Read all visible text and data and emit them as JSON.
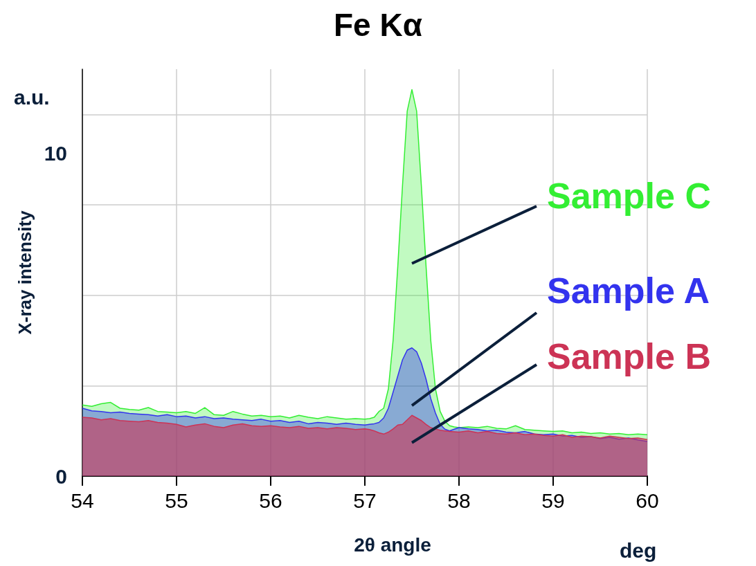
{
  "chart_data": {
    "type": "area",
    "title": "Fe Kα",
    "xlabel": "2θ angle",
    "ylabel": "X-ray intensity",
    "annotations": [
      "a.u.",
      "deg"
    ],
    "x": [
      54.0,
      54.1,
      54.2,
      54.3,
      54.4,
      54.5,
      54.6,
      54.7,
      54.8,
      54.9,
      55.0,
      55.1,
      55.2,
      55.3,
      55.4,
      55.5,
      55.6,
      55.7,
      55.8,
      55.9,
      56.0,
      56.1,
      56.2,
      56.3,
      56.4,
      56.5,
      56.6,
      56.7,
      56.8,
      56.9,
      57.0,
      57.05,
      57.1,
      57.15,
      57.2,
      57.25,
      57.3,
      57.35,
      57.4,
      57.45,
      57.5,
      57.55,
      57.6,
      57.65,
      57.7,
      57.75,
      57.8,
      57.85,
      57.9,
      57.95,
      58.0,
      58.1,
      58.2,
      58.3,
      58.4,
      58.5,
      58.6,
      58.7,
      58.8,
      58.9,
      59.0,
      59.1,
      59.2,
      59.3,
      59.4,
      59.5,
      59.6,
      59.7,
      59.8,
      59.9,
      60.0
    ],
    "series": [
      {
        "name": "Sample C",
        "color": "#33ee33",
        "values": [
          2.2,
          2.16,
          2.24,
          2.28,
          2.1,
          2.06,
          2.04,
          2.12,
          2.0,
          1.98,
          1.96,
          2.0,
          1.94,
          2.12,
          1.9,
          1.88,
          2.0,
          1.92,
          1.86,
          1.88,
          1.84,
          1.86,
          1.8,
          1.88,
          1.82,
          1.78,
          1.84,
          1.8,
          1.76,
          1.78,
          1.76,
          1.78,
          1.82,
          2.0,
          2.1,
          2.7,
          4.2,
          6.5,
          9.0,
          11.3,
          11.97,
          11.3,
          9.0,
          6.5,
          4.2,
          2.7,
          2.0,
          1.7,
          1.56,
          1.52,
          1.5,
          1.52,
          1.5,
          1.54,
          1.48,
          1.46,
          1.56,
          1.44,
          1.42,
          1.4,
          1.38,
          1.4,
          1.34,
          1.36,
          1.32,
          1.34,
          1.3,
          1.32,
          1.28,
          1.3,
          1.28
        ]
      },
      {
        "name": "Sample A",
        "color": "#3333ee",
        "values": [
          2.1,
          2.02,
          2.0,
          1.96,
          1.98,
          1.94,
          1.92,
          1.9,
          1.86,
          1.9,
          1.84,
          1.86,
          1.8,
          1.84,
          1.78,
          1.8,
          1.76,
          1.74,
          1.72,
          1.76,
          1.7,
          1.72,
          1.66,
          1.7,
          1.62,
          1.66,
          1.64,
          1.6,
          1.64,
          1.6,
          1.58,
          1.6,
          1.62,
          1.66,
          1.8,
          2.1,
          2.6,
          3.1,
          3.6,
          3.9,
          3.97,
          3.85,
          3.5,
          3.0,
          2.4,
          1.95,
          1.6,
          1.45,
          1.4,
          1.45,
          1.5,
          1.46,
          1.44,
          1.4,
          1.42,
          1.36,
          1.34,
          1.38,
          1.3,
          1.28,
          1.3,
          1.24,
          1.26,
          1.2,
          1.22,
          1.16,
          1.2,
          1.14,
          1.18,
          1.12,
          1.07
        ]
      },
      {
        "name": "Sample B",
        "color": "#cc3355",
        "values": [
          1.82,
          1.8,
          1.74,
          1.78,
          1.72,
          1.7,
          1.68,
          1.72,
          1.66,
          1.64,
          1.6,
          1.52,
          1.58,
          1.62,
          1.54,
          1.5,
          1.58,
          1.62,
          1.56,
          1.54,
          1.56,
          1.52,
          1.5,
          1.54,
          1.48,
          1.5,
          1.46,
          1.5,
          1.48,
          1.44,
          1.46,
          1.44,
          1.4,
          1.34,
          1.3,
          1.36,
          1.46,
          1.58,
          1.6,
          1.74,
          1.88,
          1.8,
          1.72,
          1.6,
          1.5,
          1.46,
          1.42,
          1.4,
          1.38,
          1.37,
          1.36,
          1.4,
          1.34,
          1.38,
          1.32,
          1.3,
          1.34,
          1.28,
          1.3,
          1.26,
          1.24,
          1.28,
          1.2,
          1.24,
          1.22,
          1.18,
          1.24,
          1.2,
          1.16,
          1.18,
          1.13
        ]
      }
    ],
    "xlim": [
      54,
      60
    ],
    "xticks": [
      54,
      55,
      56,
      57,
      58,
      59,
      60
    ],
    "ylim": [
      0,
      12.6
    ],
    "yticks": [
      0,
      {
        "value": 2.8,
        "label": null
      },
      {
        "value": 5.6,
        "label": null
      },
      {
        "value": 8.4,
        "label": null
      },
      10,
      {
        "value": 11.2,
        "label": null
      }
    ],
    "grid": true,
    "legend": false,
    "marker": "none",
    "line_style": "solid"
  }
}
